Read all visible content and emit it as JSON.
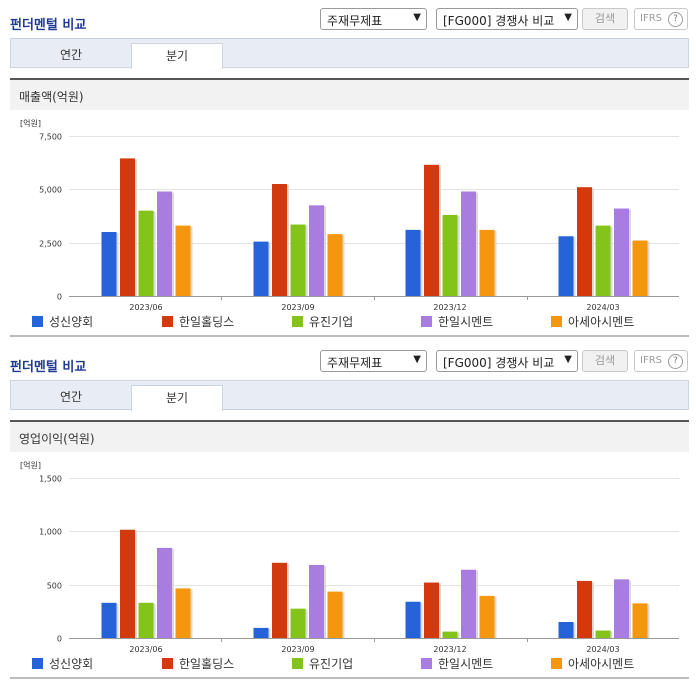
{
  "sections": [
    {
      "title": "펀더멘털 비교",
      "select1": "주재무제표",
      "select2": "[FG000] 경쟁사 비교",
      "search_label": "검색",
      "ifrs_label": "IFRS",
      "tabs": [
        {
          "label": "연간"
        },
        {
          "label": "분기"
        }
      ],
      "active_tab": "분기",
      "metric_label": "매출액(억원)",
      "unit_label": "[억원]"
    },
    {
      "title": "펀더멘털 비교",
      "select1": "주재무제표",
      "select2": "[FG000] 경쟁사 비교",
      "search_label": "검색",
      "ifrs_label": "IFRS",
      "tabs": [
        {
          "label": "연간"
        },
        {
          "label": "분기"
        }
      ],
      "active_tab": "분기",
      "metric_label": "영업이익(억원)",
      "unit_label": "[억원]"
    }
  ],
  "chart_data": [
    {
      "type": "bar",
      "categories": [
        "2023/06",
        "2023/09",
        "2023/12",
        "2024/03"
      ],
      "ylim": [
        0,
        7500
      ],
      "yticks": [
        0,
        2500,
        5000,
        7500
      ],
      "ytick_labels": [
        "0",
        "2,500",
        "5,000",
        "7,500"
      ],
      "legend_position": "bottom",
      "series": [
        {
          "name": "성신양회",
          "color": "#2563d9",
          "values": [
            3000,
            2550,
            3100,
            2800
          ]
        },
        {
          "name": "한일홀딩스",
          "color": "#d4380d",
          "values": [
            6450,
            5250,
            6150,
            5100
          ]
        },
        {
          "name": "유진기업",
          "color": "#84c41a",
          "values": [
            4000,
            3350,
            3800,
            3300
          ]
        },
        {
          "name": "한일시멘트",
          "color": "#a97de0",
          "values": [
            4900,
            4250,
            4900,
            4100
          ]
        },
        {
          "name": "아세아시멘트",
          "color": "#f5960f",
          "values": [
            3300,
            2900,
            3100,
            2600
          ]
        }
      ]
    },
    {
      "type": "bar",
      "categories": [
        "2023/06",
        "2023/09",
        "2023/12",
        "2024/03"
      ],
      "ylim": [
        0,
        1500
      ],
      "yticks": [
        0,
        500,
        1000,
        1500
      ],
      "ytick_labels": [
        "0",
        "500",
        "1,000",
        "1,500"
      ],
      "legend_position": "bottom",
      "series": [
        {
          "name": "성신양회",
          "color": "#2563d9",
          "values": [
            330,
            95,
            340,
            150
          ]
        },
        {
          "name": "한일홀딩스",
          "color": "#d4380d",
          "values": [
            1015,
            705,
            520,
            535
          ]
        },
        {
          "name": "유진기업",
          "color": "#84c41a",
          "values": [
            330,
            275,
            60,
            70
          ]
        },
        {
          "name": "한일시멘트",
          "color": "#a97de0",
          "values": [
            845,
            685,
            640,
            550
          ]
        },
        {
          "name": "아세아시멘트",
          "color": "#f5960f",
          "values": [
            465,
            435,
            395,
            325
          ]
        }
      ]
    }
  ]
}
